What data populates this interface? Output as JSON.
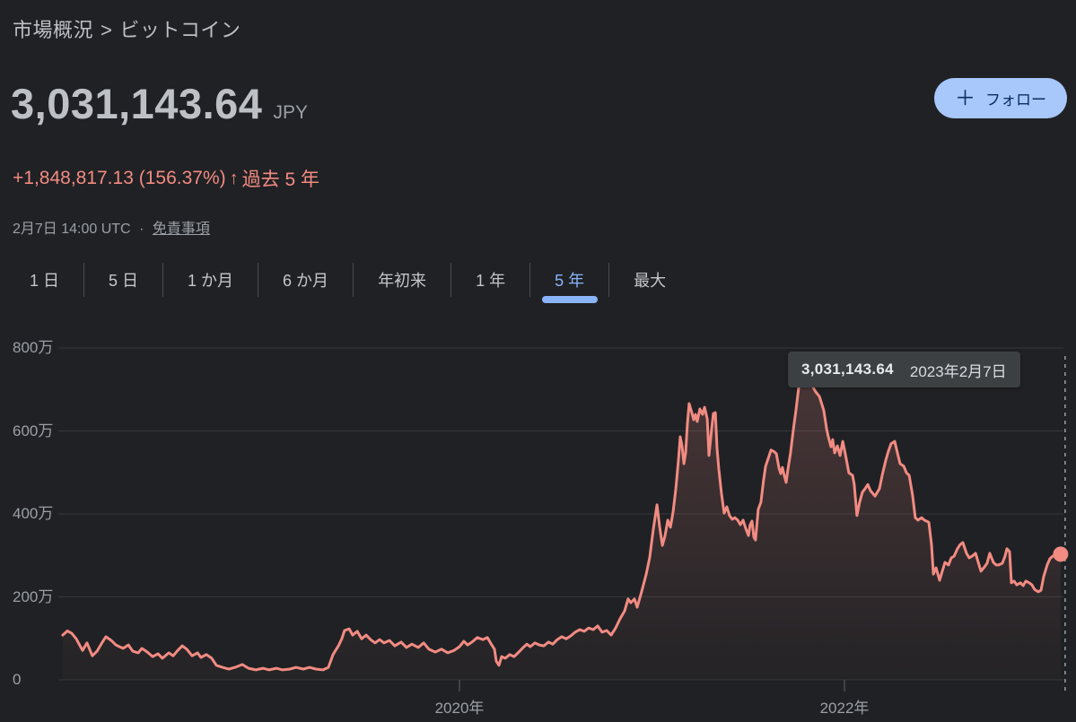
{
  "theme": {
    "background": "#202124",
    "accent_blue": "#8ab4f8",
    "follow_pill": "#a8c7fa",
    "line_salmon": "#f28b82",
    "grid": "#35383b",
    "secondary_text": "#9aa0a6",
    "primary_text": "#bdc1c6",
    "tooltip_bg": "#3c4043"
  },
  "breadcrumb": {
    "parent": "市場概況",
    "separator": ">",
    "current": "ビットコイン"
  },
  "header": {
    "price": "3,031,143.64",
    "currency": "JPY",
    "change": "+1,848,817.13 (156.37%)",
    "arrow_icon": "↑",
    "period_label": "過去 5 年",
    "timestamp": "2月7日 14:00 UTC",
    "dot_separator": "·",
    "disclaimer_link": "免責事項",
    "follow": {
      "plus": "＋",
      "label": "フォロー"
    }
  },
  "tabs": [
    {
      "id": "1d",
      "label": "1 日",
      "active": false
    },
    {
      "id": "5d",
      "label": "5 日",
      "active": false
    },
    {
      "id": "1m",
      "label": "1 か月",
      "active": false
    },
    {
      "id": "6m",
      "label": "6 か月",
      "active": false
    },
    {
      "id": "ytd",
      "label": "年初来",
      "active": false
    },
    {
      "id": "1y",
      "label": "1 年",
      "active": false
    },
    {
      "id": "5y",
      "label": "5 年",
      "active": true
    },
    {
      "id": "max",
      "label": "最大",
      "active": false
    }
  ],
  "tooltip": {
    "value": "3,031,143.64",
    "date": "2023年2月7日"
  },
  "chart_data": {
    "type": "line",
    "currency": "JPY",
    "value_unit": "万円 (10,000 JPY)",
    "x_unit": "year (decimal)",
    "x_range": [
      2017.92,
      2023.14
    ],
    "y_range": [
      0,
      800
    ],
    "grid": "horizontal",
    "legend": "none",
    "y_ticks": [
      {
        "value": 0,
        "label": "0"
      },
      {
        "value": 200,
        "label": "200万"
      },
      {
        "value": 400,
        "label": "400万"
      },
      {
        "value": 600,
        "label": "600万"
      },
      {
        "value": 800,
        "label": "800万"
      }
    ],
    "x_ticks": [
      {
        "value": 2020,
        "label": "2020年"
      },
      {
        "value": 2022,
        "label": "2022年"
      }
    ],
    "line_color": "#f28b82",
    "series": [
      {
        "name": "BTC/JPY",
        "points": [
          [
            2017.939,
            108
          ],
          [
            2017.963,
            118
          ],
          [
            2017.986,
            112
          ],
          [
            2018.009,
            99
          ],
          [
            2018.042,
            71
          ],
          [
            2018.065,
            89
          ],
          [
            2018.093,
            58
          ],
          [
            2018.117,
            69
          ],
          [
            2018.145,
            91
          ],
          [
            2018.163,
            104
          ],
          [
            2018.191,
            95
          ],
          [
            2018.215,
            84
          ],
          [
            2018.252,
            76
          ],
          [
            2018.28,
            84
          ],
          [
            2018.303,
            69
          ],
          [
            2018.331,
            65
          ],
          [
            2018.35,
            76
          ],
          [
            2018.378,
            67
          ],
          [
            2018.406,
            56
          ],
          [
            2018.434,
            63
          ],
          [
            2018.457,
            52
          ],
          [
            2018.49,
            65
          ],
          [
            2018.513,
            58
          ],
          [
            2018.536,
            71
          ],
          [
            2018.56,
            82
          ],
          [
            2018.583,
            74
          ],
          [
            2018.611,
            58
          ],
          [
            2018.639,
            65
          ],
          [
            2018.657,
            54
          ],
          [
            2018.685,
            61
          ],
          [
            2018.713,
            52
          ],
          [
            2018.737,
            35
          ],
          [
            2018.769,
            30
          ],
          [
            2018.802,
            26
          ],
          [
            2018.834,
            30
          ],
          [
            2018.872,
            37
          ],
          [
            2018.904,
            28
          ],
          [
            2018.942,
            24
          ],
          [
            2018.979,
            28
          ],
          [
            2019.011,
            24
          ],
          [
            2019.049,
            28
          ],
          [
            2019.081,
            24
          ],
          [
            2019.119,
            26
          ],
          [
            2019.151,
            30
          ],
          [
            2019.189,
            26
          ],
          [
            2019.221,
            30
          ],
          [
            2019.254,
            26
          ],
          [
            2019.291,
            24
          ],
          [
            2019.319,
            30
          ],
          [
            2019.343,
            61
          ],
          [
            2019.371,
            82
          ],
          [
            2019.389,
            99
          ],
          [
            2019.403,
            119
          ],
          [
            2019.427,
            123
          ],
          [
            2019.445,
            108
          ],
          [
            2019.469,
            117
          ],
          [
            2019.492,
            99
          ],
          [
            2019.515,
            108
          ],
          [
            2019.538,
            97
          ],
          [
            2019.562,
            89
          ],
          [
            2019.585,
            97
          ],
          [
            2019.608,
            89
          ],
          [
            2019.636,
            95
          ],
          [
            2019.664,
            82
          ],
          [
            2019.697,
            91
          ],
          [
            2019.725,
            78
          ],
          [
            2019.753,
            86
          ],
          [
            2019.786,
            78
          ],
          [
            2019.814,
            89
          ],
          [
            2019.841,
            74
          ],
          [
            2019.874,
            67
          ],
          [
            2019.907,
            74
          ],
          [
            2019.939,
            65
          ],
          [
            2019.972,
            71
          ],
          [
            2020.0,
            80
          ],
          [
            2020.023,
            93
          ],
          [
            2020.042,
            84
          ],
          [
            2020.065,
            91
          ],
          [
            2020.093,
            102
          ],
          [
            2020.121,
            97
          ],
          [
            2020.145,
            102
          ],
          [
            2020.168,
            84
          ],
          [
            2020.182,
            74
          ],
          [
            2020.191,
            45
          ],
          [
            2020.205,
            35
          ],
          [
            2020.219,
            56
          ],
          [
            2020.238,
            52
          ],
          [
            2020.261,
            61
          ],
          [
            2020.284,
            56
          ],
          [
            2020.308,
            67
          ],
          [
            2020.331,
            78
          ],
          [
            2020.35,
            86
          ],
          [
            2020.368,
            80
          ],
          [
            2020.392,
            89
          ],
          [
            2020.415,
            84
          ],
          [
            2020.438,
            82
          ],
          [
            2020.462,
            91
          ],
          [
            2020.485,
            86
          ],
          [
            2020.508,
            97
          ],
          [
            2020.531,
            104
          ],
          [
            2020.555,
            99
          ],
          [
            2020.578,
            106
          ],
          [
            2020.601,
            115
          ],
          [
            2020.625,
            121
          ],
          [
            2020.648,
            117
          ],
          [
            2020.671,
            125
          ],
          [
            2020.695,
            121
          ],
          [
            2020.718,
            130
          ],
          [
            2020.741,
            115
          ],
          [
            2020.765,
            119
          ],
          [
            2020.788,
            108
          ],
          [
            2020.811,
            125
          ],
          [
            2020.834,
            147
          ],
          [
            2020.858,
            166
          ],
          [
            2020.876,
            195
          ],
          [
            2020.89,
            186
          ],
          [
            2020.909,
            195
          ],
          [
            2020.923,
            175
          ],
          [
            2020.946,
            212
          ],
          [
            2020.97,
            255
          ],
          [
            2020.988,
            294
          ],
          [
            2021.007,
            363
          ],
          [
            2021.026,
            422
          ],
          [
            2021.04,
            368
          ],
          [
            2021.054,
            324
          ],
          [
            2021.068,
            348
          ],
          [
            2021.082,
            385
          ],
          [
            2021.096,
            368
          ],
          [
            2021.11,
            406
          ],
          [
            2021.124,
            461
          ],
          [
            2021.138,
            532
          ],
          [
            2021.147,
            586
          ],
          [
            2021.156,
            564
          ],
          [
            2021.166,
            521
          ],
          [
            2021.175,
            547
          ],
          [
            2021.184,
            618
          ],
          [
            2021.193,
            666
          ],
          [
            2021.207,
            644
          ],
          [
            2021.217,
            627
          ],
          [
            2021.226,
            640
          ],
          [
            2021.235,
            623
          ],
          [
            2021.249,
            653
          ],
          [
            2021.263,
            640
          ],
          [
            2021.273,
            657
          ],
          [
            2021.287,
            629
          ],
          [
            2021.296,
            541
          ],
          [
            2021.31,
            605
          ],
          [
            2021.319,
            642
          ],
          [
            2021.329,
            644
          ],
          [
            2021.338,
            558
          ],
          [
            2021.347,
            510
          ],
          [
            2021.361,
            450
          ],
          [
            2021.375,
            402
          ],
          [
            2021.389,
            417
          ],
          [
            2021.403,
            396
          ],
          [
            2021.417,
            387
          ],
          [
            2021.431,
            391
          ],
          [
            2021.445,
            385
          ],
          [
            2021.459,
            374
          ],
          [
            2021.473,
            385
          ],
          [
            2021.487,
            365
          ],
          [
            2021.501,
            348
          ],
          [
            2021.51,
            374
          ],
          [
            2021.52,
            383
          ],
          [
            2021.529,
            344
          ],
          [
            2021.538,
            337
          ],
          [
            2021.552,
            411
          ],
          [
            2021.566,
            428
          ],
          [
            2021.58,
            482
          ],
          [
            2021.59,
            515
          ],
          [
            2021.604,
            534
          ],
          [
            2021.618,
            554
          ],
          [
            2021.632,
            551
          ],
          [
            2021.646,
            545
          ],
          [
            2021.66,
            510
          ],
          [
            2021.669,
            497
          ],
          [
            2021.678,
            512
          ],
          [
            2021.688,
            491
          ],
          [
            2021.697,
            476
          ],
          [
            2021.706,
            506
          ],
          [
            2021.72,
            547
          ],
          [
            2021.734,
            601
          ],
          [
            2021.748,
            649
          ],
          [
            2021.762,
            703
          ],
          [
            2021.776,
            742
          ],
          [
            2021.795,
            770
          ],
          [
            2021.814,
            742
          ],
          [
            2021.832,
            709
          ],
          [
            2021.851,
            694
          ],
          [
            2021.87,
            683
          ],
          [
            2021.893,
            649
          ],
          [
            2021.907,
            605
          ],
          [
            2021.916,
            586
          ],
          [
            2021.93,
            562
          ],
          [
            2021.939,
            579
          ],
          [
            2021.949,
            547
          ],
          [
            2021.963,
            564
          ],
          [
            2021.977,
            541
          ],
          [
            2021.991,
            575
          ],
          [
            2022.005,
            543
          ],
          [
            2022.023,
            499
          ],
          [
            2022.042,
            493
          ],
          [
            2022.051,
            471
          ],
          [
            2022.065,
            396
          ],
          [
            2022.079,
            428
          ],
          [
            2022.093,
            452
          ],
          [
            2022.107,
            461
          ],
          [
            2022.121,
            471
          ],
          [
            2022.135,
            456
          ],
          [
            2022.159,
            443
          ],
          [
            2022.182,
            461
          ],
          [
            2022.196,
            493
          ],
          [
            2022.215,
            530
          ],
          [
            2022.228,
            551
          ],
          [
            2022.242,
            569
          ],
          [
            2022.261,
            575
          ],
          [
            2022.275,
            547
          ],
          [
            2022.289,
            521
          ],
          [
            2022.308,
            515
          ],
          [
            2022.322,
            499
          ],
          [
            2022.336,
            493
          ],
          [
            2022.354,
            445
          ],
          [
            2022.368,
            391
          ],
          [
            2022.382,
            385
          ],
          [
            2022.401,
            391
          ],
          [
            2022.415,
            385
          ],
          [
            2022.438,
            380
          ],
          [
            2022.452,
            326
          ],
          [
            2022.462,
            255
          ],
          [
            2022.476,
            270
          ],
          [
            2022.494,
            240
          ],
          [
            2022.508,
            262
          ],
          [
            2022.522,
            283
          ],
          [
            2022.541,
            277
          ],
          [
            2022.555,
            294
          ],
          [
            2022.569,
            298
          ],
          [
            2022.587,
            316
          ],
          [
            2022.601,
            326
          ],
          [
            2022.615,
            331
          ],
          [
            2022.634,
            305
          ],
          [
            2022.648,
            294
          ],
          [
            2022.662,
            298
          ],
          [
            2022.681,
            305
          ],
          [
            2022.695,
            283
          ],
          [
            2022.709,
            262
          ],
          [
            2022.727,
            272
          ],
          [
            2022.741,
            281
          ],
          [
            2022.755,
            305
          ],
          [
            2022.774,
            283
          ],
          [
            2022.788,
            277
          ],
          [
            2022.802,
            277
          ],
          [
            2022.82,
            281
          ],
          [
            2022.834,
            298
          ],
          [
            2022.844,
            316
          ],
          [
            2022.858,
            309
          ],
          [
            2022.867,
            234
          ],
          [
            2022.881,
            238
          ],
          [
            2022.895,
            229
          ],
          [
            2022.914,
            234
          ],
          [
            2022.928,
            227
          ],
          [
            2022.942,
            238
          ],
          [
            2022.96,
            234
          ],
          [
            2022.974,
            229
          ],
          [
            2022.988,
            218
          ],
          [
            2023.007,
            212
          ],
          [
            2023.021,
            216
          ],
          [
            2023.035,
            249
          ],
          [
            2023.053,
            277
          ],
          [
            2023.067,
            292
          ],
          [
            2023.081,
            298
          ],
          [
            2023.1,
            302
          ],
          [
            2023.123,
            303
          ]
        ]
      }
    ],
    "last_point": {
      "x": 2023.123,
      "value_man": 303.1,
      "value_label": "3,031,143.64",
      "date_label": "2023年2月7日"
    }
  }
}
